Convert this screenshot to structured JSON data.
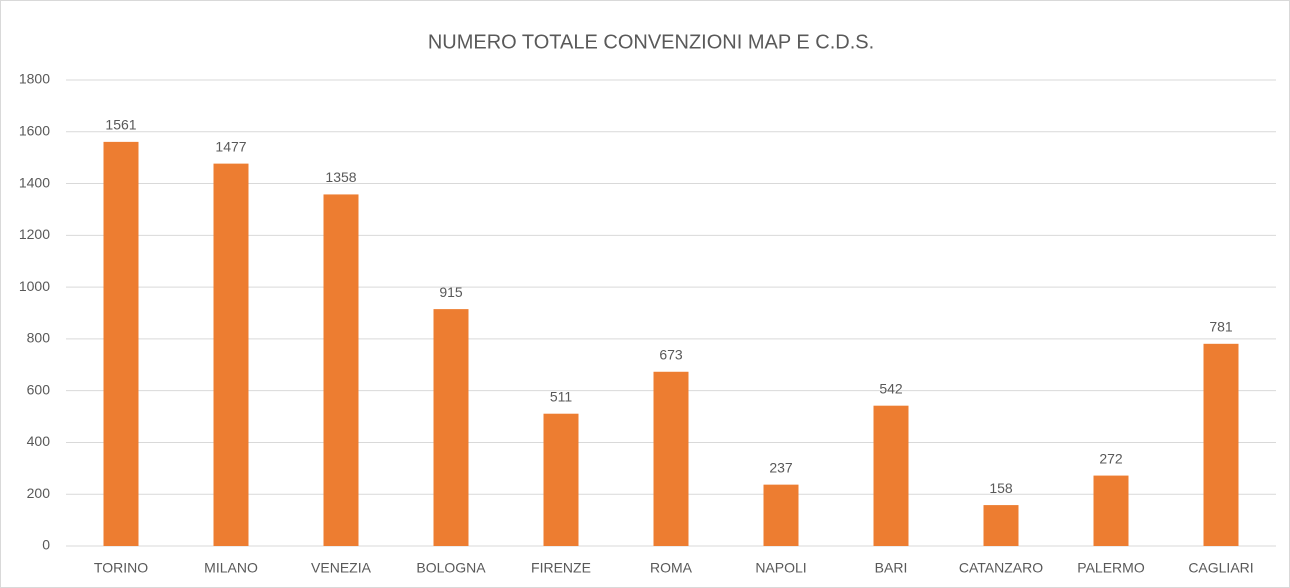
{
  "chart_data": {
    "type": "bar",
    "title": "NUMERO TOTALE CONVENZIONI MAP E C.D.S.",
    "categories": [
      "TORINO",
      "MILANO",
      "VENEZIA",
      "BOLOGNA",
      "FIRENZE",
      "ROMA",
      "NAPOLI",
      "BARI",
      "CATANZARO",
      "PALERMO",
      "CAGLIARI"
    ],
    "values": [
      1561,
      1477,
      1358,
      915,
      511,
      673,
      237,
      542,
      158,
      272,
      781
    ],
    "color": "#ed7d31",
    "ylim": [
      0,
      1800
    ],
    "yticks": [
      0,
      200,
      400,
      600,
      800,
      1000,
      1200,
      1400,
      1600,
      1800
    ],
    "grid": true
  }
}
